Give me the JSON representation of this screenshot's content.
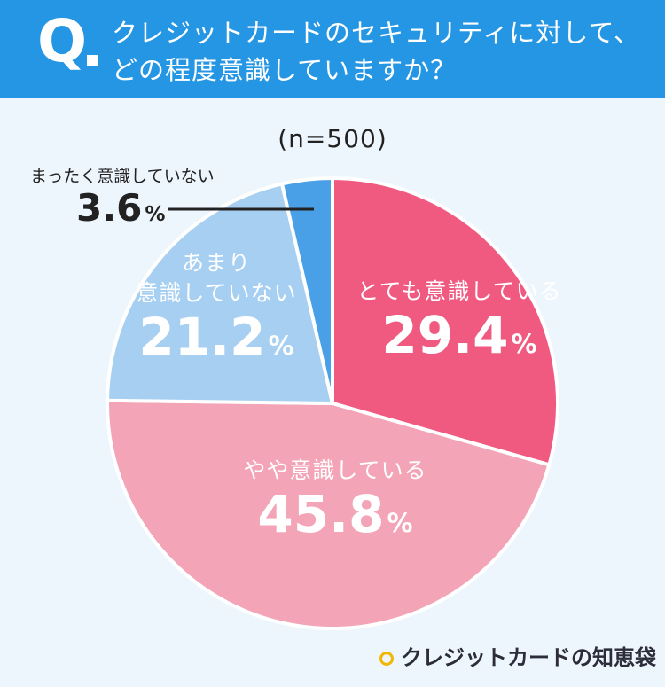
{
  "question": {
    "mark": "Q",
    "line1": "クレジットカードのセキュリティに対して、",
    "line2": "どの程度意識していますか？"
  },
  "sample": "(n=500)",
  "chart_data": {
    "type": "pie",
    "title": "クレジットカードのセキュリティに対して、どの程度意識していますか？",
    "note": "(n=500)",
    "unit": "%",
    "slices": [
      {
        "label": "とても意識している",
        "value": 29.4,
        "color": "#f05a80"
      },
      {
        "label": "やや意識している",
        "value": 45.8,
        "color": "#f3a4b7"
      },
      {
        "label": "あまり意識していない",
        "value": 21.2,
        "color": "#a6cff1"
      },
      {
        "label": "まったく意識していない",
        "value": 3.6,
        "color": "#4aa0e6"
      }
    ]
  },
  "labels": {
    "very": {
      "name": "とても意識している",
      "value": "29.4",
      "pct": "%"
    },
    "somewhat": {
      "name": "やや意識している",
      "value": "45.8",
      "pct": "%"
    },
    "not_much_line1": "あまり",
    "not_much_line2": "意識していない",
    "not_much_value": "21.2",
    "not_much_pct": "%",
    "not_at_all_name": "まったく意識していない",
    "not_at_all_value": "3.6",
    "not_at_all_pct": "%"
  },
  "logo": {
    "text": "クレジットカードの知恵袋",
    "icon": "diamond-check-icon"
  }
}
